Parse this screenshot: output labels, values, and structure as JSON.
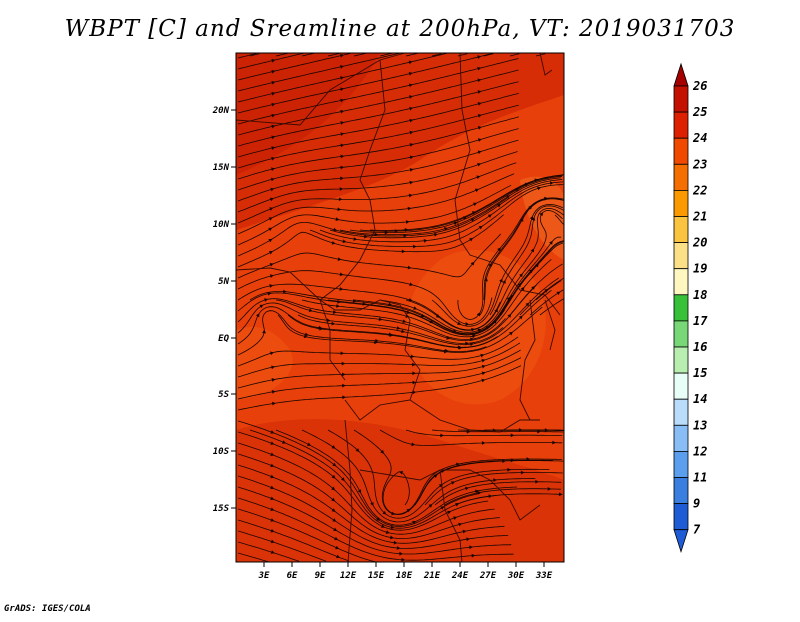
{
  "title": "WBPT [C] and Sreamline at 200hPa, VT: 2019031703",
  "footer": "GrADS: IGES/COLA",
  "map": {
    "lat_labels": [
      "20N",
      "15N",
      "10N",
      "5N",
      "EQ",
      "5S",
      "10S",
      "15S"
    ],
    "lon_labels": [
      "3E",
      "6E",
      "9E",
      "12E",
      "15E",
      "18E",
      "21E",
      "24E",
      "27E",
      "30E",
      "33E"
    ],
    "fill_color": "#e8400a"
  },
  "colorbar": {
    "labels": [
      "26",
      "25",
      "24",
      "23",
      "22",
      "21",
      "20",
      "19",
      "18",
      "17",
      "16",
      "15",
      "14",
      "13",
      "12",
      "11",
      "9",
      "7"
    ],
    "colors": [
      "#a50000",
      "#c41000",
      "#dd2000",
      "#ef4a00",
      "#f56e00",
      "#fa9a00",
      "#fbc440",
      "#fbe088",
      "#fff6c0",
      "#38c038",
      "#78d878",
      "#b8efb0",
      "#e8fff8",
      "#b8dcfa",
      "#88bef5",
      "#5c9eee",
      "#3a7ee0",
      "#1e5cd6"
    ]
  }
}
